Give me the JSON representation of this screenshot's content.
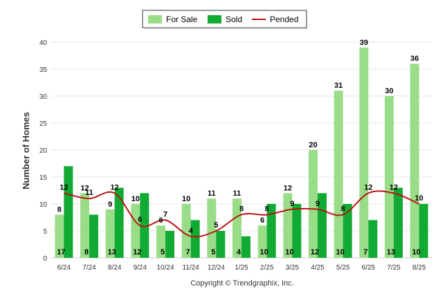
{
  "chart_data": {
    "type": "bar",
    "categories": [
      "6/24",
      "7/24",
      "8/24",
      "9/24",
      "10/24",
      "11/24",
      "12/24",
      "1/25",
      "2/25",
      "3/25",
      "4/25",
      "5/25",
      "6/25",
      "7/25",
      "8/25"
    ],
    "series": [
      {
        "name": "For Sale",
        "type": "bar",
        "color": "#99dd88",
        "values": [
          8,
          12,
          9,
          10,
          6,
          10,
          11,
          11,
          6,
          12,
          20,
          31,
          39,
          30,
          36
        ]
      },
      {
        "name": "Sold",
        "type": "bar",
        "color": "#11aa33",
        "values": [
          17,
          8,
          13,
          12,
          5,
          7,
          5,
          4,
          10,
          10,
          12,
          10,
          7,
          13,
          10
        ]
      },
      {
        "name": "Pended",
        "type": "line",
        "color": "#bb1111",
        "values": [
          12,
          11,
          12,
          6,
          7,
          4,
          5,
          8,
          8,
          9,
          9,
          8,
          12,
          12,
          10
        ]
      }
    ],
    "ylabel": "Number of Homes",
    "ylim": [
      0,
      40
    ],
    "yticks": [
      0,
      5,
      10,
      15,
      20,
      25,
      30,
      35,
      40
    ],
    "grid": true,
    "legend_position": "top-center",
    "footer": "Copyright © Trendgraphix, Inc."
  }
}
